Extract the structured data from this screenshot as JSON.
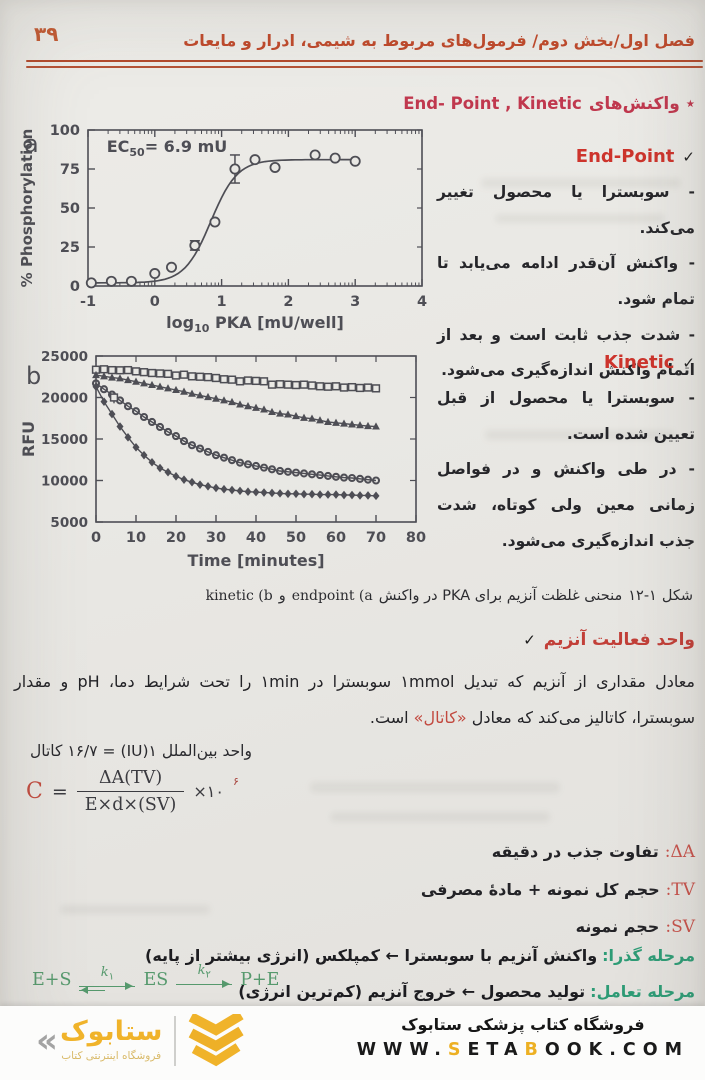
{
  "page": {
    "number": "۳۹",
    "header_title": "فصل اول/بخش دوم/ فرمول‌های مربوط به شیمی، ادرار و مایعات"
  },
  "section": {
    "heading_fa": "٭ واکنش‌های",
    "heading_en": "End- Point , Kinetic"
  },
  "endpoint": {
    "title": "End-Point",
    "check": "✓",
    "bullets": [
      {
        "pre": "- سوبسترا یا محصول تغییر می‌کند.",
        "bold": "",
        "post": ""
      },
      {
        "pre": "- واکنش آن‌قدر ادامه می‌یابد تا ",
        "bold": "تمام شود.",
        "post": ""
      },
      {
        "pre": "- شدت جذب ثابت است و بعد از ",
        "bold": "اتمام واکنش",
        "post": " اندازه‌گیری می‌شود."
      }
    ]
  },
  "kinetic": {
    "title": "Kinetic",
    "check": "✓",
    "bullets": [
      {
        "pre": "- سوبسترا یا محصول ",
        "bold": "از قبل تعیین شده",
        "post": " است."
      },
      {
        "pre": "- در ",
        "bold": "طی واکنش",
        "post": " و در فواصل زمانی معین ولی کوتاه، شدت جذب اندازه‌گیری می‌شود."
      }
    ]
  },
  "caption": {
    "kinetic_seg": "kinetic (b",
    "vav": "و",
    "endpoint_seg": "endpoint (a",
    "middle": "منحنی غلظت آنزیم برای PKA در واکنش",
    "figno": "۱۲-۱",
    "prefix": "شکل"
  },
  "activity": {
    "check": "✓",
    "title": "واحد فعالیت آنزیم",
    "para_1": "معادل مقداری از آنزیم که تبدیل ۱mmol سوبسترا در ۱min را تحت شرایط دما، pH و مقدار سوبسترا، کاتالیز می‌کند که معادل ",
    "para_red": "«کاتال»",
    "para_2": " است."
  },
  "katal": {
    "s1": "کاتال",
    "s2": "۱۶/۷ =",
    "s3": "(IU)۱",
    "s4": "واحد بین‌الملل"
  },
  "formula": {
    "c": "C",
    "eq": "=",
    "numerator": "ΔA(TV)",
    "denominator": "E×d×(SV)",
    "multiplier": "×۱۰",
    "exponent": "۶"
  },
  "definitions": [
    {
      "label": "ΔA:",
      "text": "تفاوت جذب در دقیقه"
    },
    {
      "label": "TV:",
      "text": "حجم کل نمونه + مادهٔ مصرفی"
    },
    {
      "label": "SV:",
      "text": "حجم نمونه"
    }
  ],
  "stages": [
    {
      "label": "مرحله گذرا:",
      "text": "واکنش آنزیم با سوبسترا ← کمپلکس (انرژی بیشتر از پایه)"
    },
    {
      "label": "مرحله تعامل:",
      "text": "تولید محصول ← خروج آنزیم (کم‌ترین انرژی)"
    }
  ],
  "reaction": {
    "left": "E+S",
    "k": "k",
    "k1sub": "۱",
    "mid": "ES",
    "k2sub": "۲",
    "right": "P+E"
  },
  "footer": {
    "store_fa": "فروشگاه کتاب پزشکی ستابوک",
    "url_w": "WWW.",
    "url_s": "S",
    "url_eta": "ETA",
    "url_b": "B",
    "url_rest": "OOK.COM",
    "logo_guillemet": "«",
    "logo_word": "ستابوک",
    "logo_tagline": "فروشگاه اینترنتی کتاب"
  },
  "colors": {
    "accent_red": "#bf4a2c",
    "heading_crimson": "#c0384e",
    "label_red": "#c7524b",
    "stage_green": "#2e9c76",
    "equation_green": "#56996d",
    "logo_yellow": "#f0b32a",
    "chart_ink": "#4e4e55",
    "paper": "#e9e8e4"
  },
  "chart_data": [
    {
      "type": "scatter",
      "panel": "a",
      "annotation": {
        "pre": "EC",
        "sub": "50",
        "post": "= 6.9 mU"
      },
      "xlabel": {
        "pre": "log",
        "sub": "10",
        "post": " PKA [mU/well]"
      },
      "ylabel": "% Phosphorylation",
      "xlim": [
        -1,
        4
      ],
      "ylim": [
        0,
        100
      ],
      "xticks": [
        -1,
        0,
        1,
        2,
        3,
        4
      ],
      "yticks": [
        0,
        25,
        50,
        75,
        100
      ],
      "points": [
        [
          -0.95,
          2
        ],
        [
          -0.65,
          3
        ],
        [
          -0.35,
          3
        ],
        [
          0,
          8
        ],
        [
          0.25,
          12
        ],
        [
          0.6,
          26
        ],
        [
          0.9,
          41
        ],
        [
          1.2,
          75
        ],
        [
          1.5,
          81
        ],
        [
          1.8,
          76
        ],
        [
          2.4,
          84
        ],
        [
          2.7,
          82
        ],
        [
          3,
          80
        ]
      ],
      "error_bars": [
        {
          "x": 0.6,
          "y": 26,
          "err": 3
        },
        {
          "x": 1.2,
          "y": 75,
          "err": 9
        }
      ],
      "fit": {
        "bottom": 2,
        "top": 81,
        "logec50": 0.84,
        "hill": 2.2
      },
      "grid": false,
      "legend": "none"
    },
    {
      "type": "line",
      "panel": "b",
      "xlabel": "Time [minutes]",
      "ylabel": "RFU",
      "xlim": [
        0,
        80
      ],
      "ylim": [
        5000,
        25000
      ],
      "xticks": [
        0,
        10,
        20,
        30,
        40,
        50,
        60,
        70,
        80
      ],
      "yticks": [
        5000,
        10000,
        15000,
        20000,
        25000
      ],
      "x": [
        0,
        2,
        4,
        6,
        8,
        10,
        12,
        14,
        16,
        18,
        20,
        22,
        24,
        26,
        28,
        30,
        32,
        34,
        36,
        38,
        40,
        42,
        44,
        46,
        48,
        50,
        52,
        54,
        56,
        58,
        60,
        62,
        64,
        66,
        68,
        70
      ],
      "series": [
        {
          "marker": "square",
          "y": [
            23350,
            23400,
            23300,
            23280,
            23300,
            23150,
            23050,
            22950,
            22900,
            22850,
            22650,
            22750,
            22550,
            22500,
            22450,
            22350,
            22200,
            22150,
            21950,
            22050,
            22000,
            21950,
            21550,
            21600,
            21550,
            21500,
            21550,
            21450,
            21350,
            21300,
            21350,
            21200,
            21250,
            21150,
            21200,
            21100
          ]
        },
        {
          "marker": "triangle",
          "y": [
            22700,
            22550,
            22400,
            22300,
            22100,
            21900,
            21700,
            21500,
            21300,
            21100,
            20900,
            20700,
            20450,
            20250,
            20050,
            19850,
            19650,
            19450,
            19150,
            18950,
            18750,
            18550,
            18250,
            18050,
            17950,
            17750,
            17550,
            17450,
            17250,
            17050,
            16950,
            16850,
            16750,
            16650,
            16550,
            16500
          ]
        },
        {
          "marker": "circle",
          "y": [
            21700,
            21000,
            20350,
            19650,
            18950,
            18350,
            17650,
            17050,
            16450,
            15850,
            15350,
            14750,
            14250,
            13850,
            13450,
            13050,
            12750,
            12450,
            12150,
            11950,
            11750,
            11550,
            11350,
            11150,
            11050,
            10950,
            10850,
            10750,
            10650,
            10550,
            10450,
            10350,
            10300,
            10200,
            10100,
            10000
          ]
        },
        {
          "marker": "diamond",
          "y": [
            21300,
            19500,
            18000,
            16500,
            15200,
            14000,
            13050,
            12200,
            11500,
            11000,
            10500,
            10100,
            9800,
            9500,
            9300,
            9100,
            8950,
            8850,
            8750,
            8650,
            8600,
            8550,
            8500,
            8450,
            8400,
            8400,
            8350,
            8350,
            8300,
            8300,
            8300,
            8250,
            8250,
            8200,
            8200,
            8150
          ]
        }
      ],
      "outlier": {
        "series": "square",
        "x": 4.5,
        "y": 20000,
        "err": 700
      },
      "grid": false,
      "legend": "none"
    }
  ]
}
